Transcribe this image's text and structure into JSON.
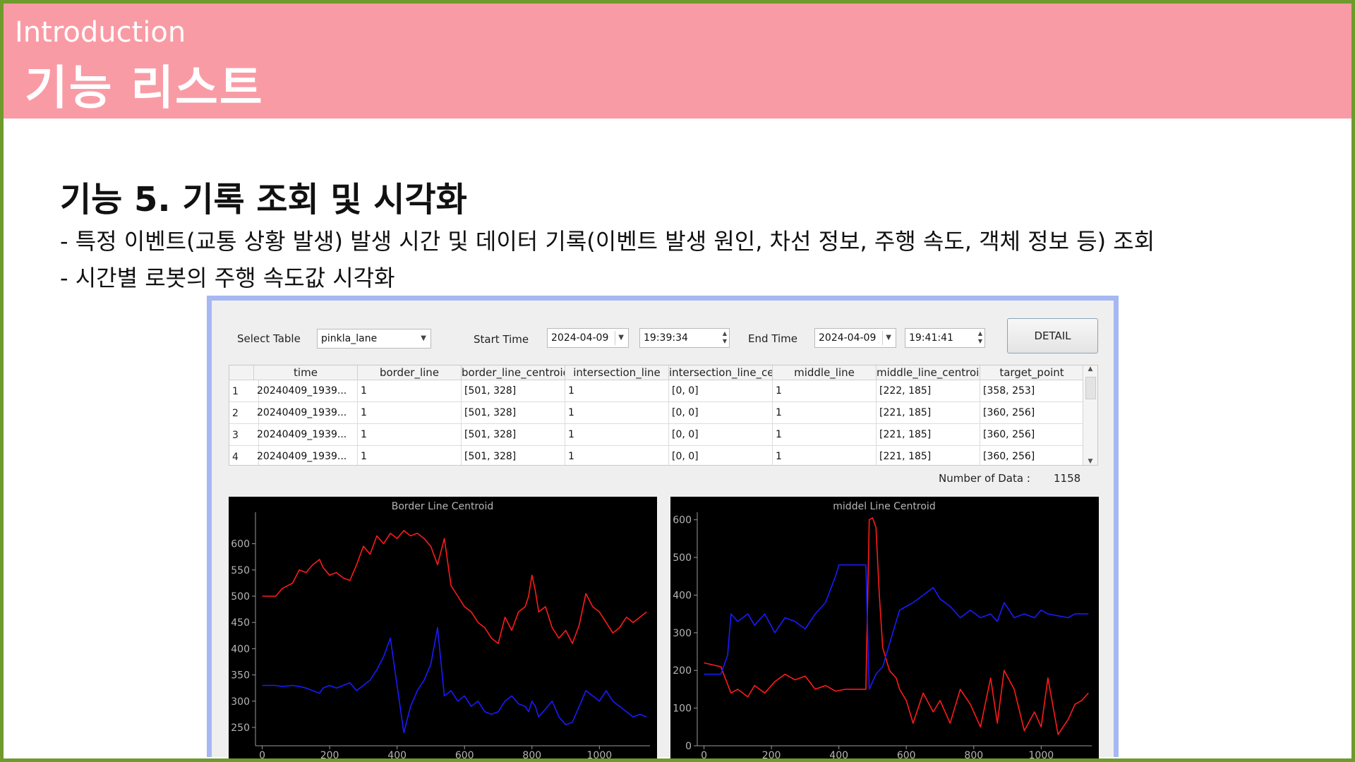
{
  "header": {
    "subtitle": "Introduction",
    "title": "기능 리스트"
  },
  "section": {
    "heading": "기능 5. 기록 조회 및 시각화",
    "bullets": [
      "- 특정 이벤트(교통 상황 발생) 발생 시간 및 데이터 기록(이벤트 발생 원인, 차선 정보, 주행 속도, 객체 정보 등) 조회",
      "- 시간별 로봇의 주행 속도값 시각화"
    ]
  },
  "app": {
    "select_table_label": "Select Table",
    "select_table_value": "pinkla_lane",
    "start_time_label": "Start Time",
    "start_date": "2024-04-09",
    "start_time": "19:39:34",
    "end_time_label": "End Time",
    "end_date": "2024-04-09",
    "end_time": "19:41:41",
    "detail_button": "DETAIL",
    "table": {
      "columns": [
        "time",
        "border_line",
        "border_line_centroid",
        "intersection_line",
        "intersection_line_centroid",
        "middle_line",
        "middle_line_centroid",
        "target_point"
      ],
      "rows": [
        {
          "n": "1",
          "cells": [
            "20240409_1939...",
            "1",
            "[501, 328]",
            "1",
            "[0, 0]",
            "1",
            "[222, 185]",
            "[358, 253]"
          ]
        },
        {
          "n": "2",
          "cells": [
            "20240409_1939...",
            "1",
            "[501, 328]",
            "1",
            "[0, 0]",
            "1",
            "[221, 185]",
            "[360, 256]"
          ]
        },
        {
          "n": "3",
          "cells": [
            "20240409_1939...",
            "1",
            "[501, 328]",
            "1",
            "[0, 0]",
            "1",
            "[221, 185]",
            "[360, 256]"
          ]
        },
        {
          "n": "4",
          "cells": [
            "20240409_1939...",
            "1",
            "[501, 328]",
            "1",
            "[0, 0]",
            "1",
            "[221, 185]",
            "[360, 256]"
          ]
        }
      ]
    },
    "count_label": "Number of Data :",
    "count_value": "1158"
  },
  "chart_data": [
    {
      "type": "line",
      "title": "Border Line Centroid",
      "xlim": [
        -20,
        1150
      ],
      "ylim": [
        215,
        660
      ],
      "xticks": [
        0,
        200,
        400,
        600,
        800,
        1000
      ],
      "yticks": [
        250,
        300,
        350,
        400,
        450,
        500,
        550,
        600
      ],
      "grid": false,
      "background": "#000000",
      "series": [
        {
          "color": "#ff1a1a",
          "x": [
            0,
            40,
            60,
            90,
            110,
            130,
            150,
            170,
            180,
            200,
            220,
            240,
            260,
            280,
            300,
            320,
            340,
            360,
            380,
            400,
            420,
            440,
            460,
            480,
            500,
            520,
            540,
            560,
            580,
            600,
            620,
            640,
            660,
            680,
            700,
            720,
            740,
            760,
            780,
            790,
            800,
            810,
            820,
            840,
            860,
            880,
            900,
            920,
            940,
            960,
            980,
            1000,
            1020,
            1040,
            1060,
            1080,
            1100,
            1120,
            1140
          ],
          "y": [
            500,
            500,
            515,
            525,
            550,
            545,
            560,
            570,
            555,
            540,
            545,
            535,
            530,
            560,
            595,
            580,
            615,
            600,
            620,
            610,
            625,
            615,
            620,
            610,
            595,
            560,
            610,
            520,
            500,
            480,
            470,
            450,
            440,
            420,
            410,
            460,
            435,
            470,
            480,
            500,
            540,
            510,
            470,
            480,
            440,
            420,
            435,
            410,
            445,
            505,
            480,
            470,
            450,
            430,
            440,
            460,
            450,
            460,
            470
          ]
        },
        {
          "color": "#1a1aff",
          "x": [
            0,
            40,
            60,
            90,
            110,
            130,
            150,
            170,
            180,
            200,
            220,
            240,
            260,
            280,
            300,
            320,
            340,
            360,
            380,
            400,
            420,
            440,
            460,
            480,
            500,
            520,
            540,
            560,
            580,
            600,
            620,
            640,
            660,
            680,
            700,
            720,
            740,
            760,
            780,
            790,
            800,
            810,
            820,
            840,
            860,
            880,
            900,
            920,
            940,
            960,
            980,
            1000,
            1020,
            1040,
            1060,
            1080,
            1100,
            1120,
            1140
          ],
          "y": [
            330,
            330,
            328,
            330,
            328,
            325,
            320,
            315,
            325,
            330,
            325,
            330,
            335,
            320,
            330,
            340,
            360,
            385,
            420,
            330,
            240,
            290,
            320,
            340,
            370,
            440,
            310,
            320,
            300,
            310,
            290,
            300,
            280,
            275,
            280,
            300,
            310,
            295,
            290,
            280,
            300,
            290,
            270,
            285,
            300,
            270,
            255,
            260,
            290,
            320,
            310,
            300,
            320,
            300,
            290,
            280,
            270,
            275,
            270
          ]
        }
      ]
    },
    {
      "type": "line",
      "title": "middel Line Centroid",
      "xlim": [
        -20,
        1150
      ],
      "ylim": [
        0,
        620
      ],
      "xticks": [
        0,
        200,
        400,
        600,
        800,
        1000
      ],
      "yticks": [
        0,
        100,
        200,
        300,
        400,
        500,
        600
      ],
      "grid": false,
      "background": "#000000",
      "series": [
        {
          "color": "#ff1a1a",
          "x": [
            0,
            50,
            80,
            100,
            130,
            150,
            180,
            210,
            240,
            270,
            300,
            330,
            360,
            390,
            420,
            450,
            480,
            490,
            500,
            510,
            520,
            530,
            550,
            570,
            580,
            600,
            620,
            650,
            680,
            700,
            730,
            760,
            790,
            820,
            850,
            870,
            890,
            920,
            950,
            980,
            1000,
            1020,
            1050,
            1080,
            1100,
            1120,
            1140
          ],
          "y": [
            220,
            210,
            140,
            150,
            130,
            160,
            140,
            170,
            190,
            175,
            185,
            150,
            160,
            145,
            150,
            150,
            150,
            600,
            605,
            580,
            400,
            260,
            200,
            180,
            150,
            120,
            60,
            140,
            90,
            120,
            60,
            150,
            110,
            50,
            180,
            60,
            200,
            150,
            40,
            90,
            50,
            180,
            30,
            70,
            110,
            120,
            140
          ]
        },
        {
          "color": "#1a1aff",
          "x": [
            0,
            50,
            70,
            80,
            100,
            130,
            150,
            180,
            210,
            240,
            270,
            300,
            330,
            360,
            390,
            400,
            420,
            450,
            480,
            490,
            500,
            510,
            530,
            550,
            570,
            580,
            600,
            620,
            650,
            680,
            700,
            730,
            760,
            790,
            820,
            850,
            870,
            890,
            920,
            950,
            980,
            1000,
            1020,
            1050,
            1080,
            1100,
            1120,
            1140
          ],
          "y": [
            190,
            190,
            240,
            350,
            330,
            350,
            320,
            350,
            300,
            340,
            330,
            310,
            350,
            380,
            450,
            480,
            480,
            480,
            480,
            150,
            170,
            190,
            210,
            270,
            330,
            360,
            370,
            380,
            400,
            420,
            390,
            370,
            340,
            360,
            340,
            350,
            330,
            380,
            340,
            350,
            340,
            360,
            350,
            345,
            340,
            350,
            350,
            350
          ]
        }
      ]
    }
  ]
}
